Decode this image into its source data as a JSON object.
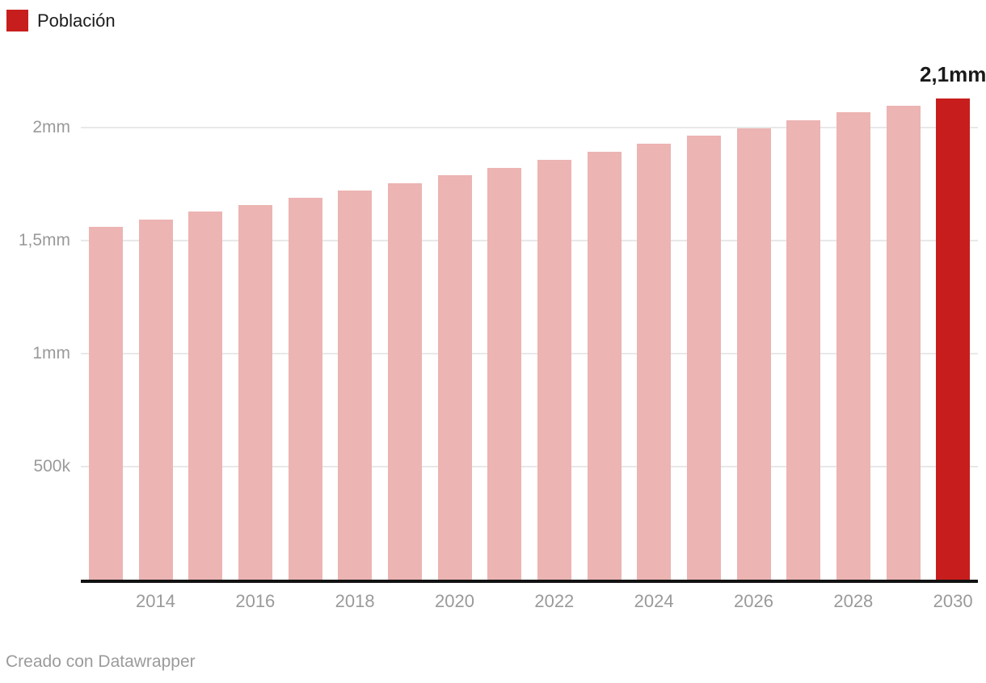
{
  "legend": {
    "label": "Población",
    "swatch_color": "#c71e1d"
  },
  "footer": {
    "prefix": "Creado con ",
    "link_text": "Datawrapper"
  },
  "colors": {
    "bar": "#ecb4b2",
    "highlight": "#c71e1d",
    "grid": "#e8e8e8",
    "axis_line": "#121212",
    "tick_text": "#9a9a9a",
    "annotation_text": "#1a1a1a"
  },
  "chart_data": {
    "type": "bar",
    "title": "",
    "series_name": "Población",
    "unit": "thousands",
    "years": [
      2013,
      2014,
      2015,
      2016,
      2017,
      2018,
      2019,
      2020,
      2021,
      2022,
      2023,
      2024,
      2025,
      2026,
      2027,
      2028,
      2029,
      2030
    ],
    "values_thousands": [
      1560,
      1592,
      1627,
      1656,
      1690,
      1721,
      1755,
      1789,
      1823,
      1857,
      1893,
      1928,
      1964,
      1996,
      2032,
      2068,
      2096,
      2130
    ],
    "highlight": {
      "year": 2030,
      "index": 17,
      "label": "2,1mm"
    },
    "y_ticks": [
      {
        "value": 500,
        "label": "500k"
      },
      {
        "value": 1000,
        "label": "1mm"
      },
      {
        "value": 1500,
        "label": "1,5mm"
      },
      {
        "value": 2000,
        "label": "2mm"
      }
    ],
    "x_ticks": [
      2014,
      2016,
      2018,
      2020,
      2022,
      2024,
      2026,
      2028,
      2030
    ],
    "ylim": [
      0,
      2350
    ],
    "grid": true,
    "legend_position": "top-left"
  }
}
